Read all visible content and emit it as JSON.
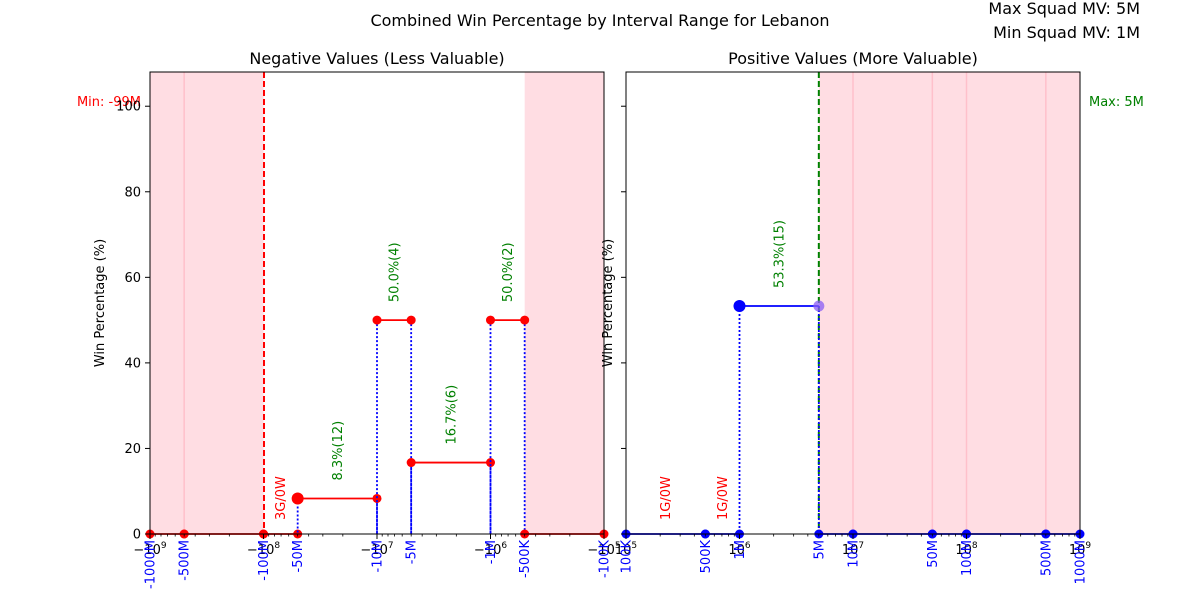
{
  "figure": {
    "suptitle": "Combined Win Percentage by Interval Range for Lebanon",
    "max_squad_label": "Max Squad MV: 5M",
    "min_squad_label": "Min Squad MV: 1M"
  },
  "colors": {
    "shade": "#ffdde3",
    "shade_line": "#ffc0cb",
    "negative_series": "#ff0000",
    "positive_series": "#0000ff",
    "annotation_win": "#008000",
    "annotation_nogame": "#ff0000",
    "min_line": "#ff0000",
    "max_line": "#008000",
    "tick_label_blue": "#0000ff",
    "highlight_marker": "#8a5cf6"
  },
  "chart_data": [
    {
      "id": "negative",
      "type": "line",
      "title": "Negative Values (Less Valuable)",
      "ylabel": "Win Percentage (%)",
      "xscale": "symlog-negative",
      "xlim": [
        -1000000000,
        -100000
      ],
      "ylim": [
        0,
        108
      ],
      "yticks": [
        0,
        20,
        40,
        60,
        80,
        100
      ],
      "xticks_major": [
        {
          "value": -1000000000,
          "label": "−10^9"
        },
        {
          "value": -100000000,
          "label": "−10^8"
        },
        {
          "value": -10000000,
          "label": "−10^7"
        },
        {
          "value": -1000000,
          "label": "−10^6"
        },
        {
          "value": -100000,
          "label": "−10^5"
        }
      ],
      "interval_labels": [
        {
          "value": -1000000000,
          "label": "-1000M"
        },
        {
          "value": -500000000,
          "label": "-500M"
        },
        {
          "value": -100000000,
          "label": "-100M"
        },
        {
          "value": -50000000,
          "label": "-50M"
        },
        {
          "value": -10000000,
          "label": "-10M"
        },
        {
          "value": -5000000,
          "label": "-5M"
        },
        {
          "value": -1000000,
          "label": "-1M"
        },
        {
          "value": -500000,
          "label": "-500K"
        },
        {
          "value": -100000,
          "label": "-100K"
        }
      ],
      "shaded_ranges": [
        [
          -1000000000,
          -100000000
        ],
        [
          -500000,
          -100000
        ]
      ],
      "shade_lines": [
        -500000000
      ],
      "reference_line": {
        "value": -99000000,
        "label": "Min: -99M"
      },
      "segments": [
        {
          "from": -1000000000,
          "to": -500000000,
          "win_pct": 0,
          "annotation": ""
        },
        {
          "from": -500000000,
          "to": -100000000,
          "win_pct": 0,
          "annotation": ""
        },
        {
          "from": -100000000,
          "to": -50000000,
          "win_pct": 0,
          "annotation": "3G/0W",
          "annotation_type": "nogame"
        },
        {
          "from": -50000000,
          "to": -10000000,
          "win_pct": 8.3,
          "annotation": "8.3%(12)",
          "annotation_type": "win",
          "big_marker": true
        },
        {
          "from": -10000000,
          "to": -5000000,
          "win_pct": 50.0,
          "annotation": "50.0%(4)",
          "annotation_type": "win"
        },
        {
          "from": -5000000,
          "to": -1000000,
          "win_pct": 16.7,
          "annotation": "16.7%(6)",
          "annotation_type": "win"
        },
        {
          "from": -1000000,
          "to": -500000,
          "win_pct": 50.0,
          "annotation": "50.0%(2)",
          "annotation_type": "win"
        },
        {
          "from": -500000,
          "to": -100000,
          "win_pct": 0,
          "annotation": ""
        }
      ]
    },
    {
      "id": "positive",
      "type": "line",
      "title": "Positive Values (More Valuable)",
      "ylabel": "Win Percentage (%)",
      "xscale": "log",
      "xlim": [
        100000,
        1000000000
      ],
      "ylim": [
        0,
        108
      ],
      "yticks": [
        0,
        20,
        40,
        60,
        80,
        100
      ],
      "xticks_major": [
        {
          "value": 100000,
          "label": "10^5"
        },
        {
          "value": 1000000,
          "label": "10^6"
        },
        {
          "value": 10000000,
          "label": "10^7"
        },
        {
          "value": 100000000,
          "label": "10^8"
        },
        {
          "value": 1000000000,
          "label": "10^9"
        }
      ],
      "interval_labels": [
        {
          "value": 100000,
          "label": "100K"
        },
        {
          "value": 500000,
          "label": "500K"
        },
        {
          "value": 1000000,
          "label": "1M"
        },
        {
          "value": 5000000,
          "label": "5M"
        },
        {
          "value": 10000000,
          "label": "10M"
        },
        {
          "value": 50000000,
          "label": "50M"
        },
        {
          "value": 100000000,
          "label": "100M"
        },
        {
          "value": 500000000,
          "label": "500M"
        },
        {
          "value": 1000000000,
          "label": "1000M"
        }
      ],
      "shaded_ranges": [
        [
          5000000,
          1000000000
        ]
      ],
      "shade_lines": [
        10000000,
        50000000,
        100000000,
        500000000
      ],
      "reference_line": {
        "value": 5000000,
        "label": "Max: 5M"
      },
      "segments": [
        {
          "from": 100000,
          "to": 500000,
          "win_pct": 0,
          "annotation": "1G/0W",
          "annotation_type": "nogame"
        },
        {
          "from": 500000,
          "to": 1000000,
          "win_pct": 0,
          "annotation": "1G/0W",
          "annotation_type": "nogame"
        },
        {
          "from": 1000000,
          "to": 5000000,
          "win_pct": 53.3,
          "annotation": "53.3%(15)",
          "annotation_type": "win",
          "big_marker": true
        },
        {
          "from": 5000000,
          "to": 10000000,
          "win_pct": 0,
          "annotation": ""
        },
        {
          "from": 10000000,
          "to": 50000000,
          "win_pct": 0,
          "annotation": ""
        },
        {
          "from": 50000000,
          "to": 100000000,
          "win_pct": 0,
          "annotation": ""
        },
        {
          "from": 100000000,
          "to": 500000000,
          "win_pct": 0,
          "annotation": ""
        },
        {
          "from": 500000000,
          "to": 1000000000,
          "win_pct": 0,
          "annotation": ""
        }
      ]
    }
  ]
}
